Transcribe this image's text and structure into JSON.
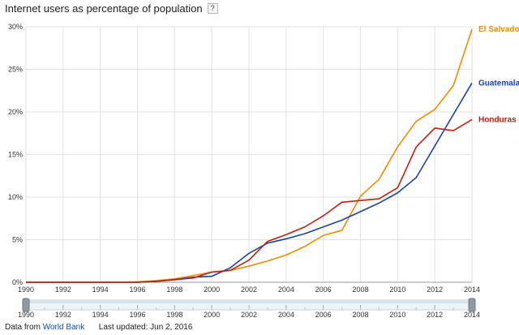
{
  "header": {
    "title": "Internet users as percentage of population",
    "help_label": "?"
  },
  "footer": {
    "data_from_label": "Data from",
    "source_link": "World Bank",
    "updated_label": "Last updated: Jun 2, 2016"
  },
  "chart_data": {
    "type": "line",
    "title": "Internet users as percentage of population",
    "xlabel": "",
    "ylabel": "",
    "x": [
      1990,
      1991,
      1992,
      1993,
      1994,
      1995,
      1996,
      1997,
      1998,
      1999,
      2000,
      2001,
      2002,
      2003,
      2004,
      2005,
      2006,
      2007,
      2008,
      2009,
      2010,
      2011,
      2012,
      2013,
      2014
    ],
    "xlim": [
      1990,
      2014
    ],
    "ylim": [
      0,
      30
    ],
    "x_ticks": [
      "1990",
      "1992",
      "1994",
      "1996",
      "1998",
      "2000",
      "2002",
      "2004",
      "2006",
      "2008",
      "2010",
      "2012",
      "2014"
    ],
    "y_ticks": [
      "0%",
      "5%",
      "10%",
      "15%",
      "20%",
      "25%",
      "30%"
    ],
    "grid": true,
    "legend": "end-of-line labels (right)",
    "series": [
      {
        "name": "El Salvador",
        "color": "#f08c00",
        "values": [
          0,
          0,
          0,
          0,
          0,
          0,
          0.05,
          0.2,
          0.4,
          0.8,
          1.2,
          1.4,
          1.9,
          2.5,
          3.2,
          4.2,
          5.5,
          6.1,
          10.1,
          12.1,
          15.9,
          18.9,
          20.3,
          23.1,
          29.7
        ]
      },
      {
        "name": "Guatemala",
        "color": "#1a43a8",
        "values": [
          0,
          0,
          0,
          0,
          0,
          0,
          0,
          0.1,
          0.3,
          0.6,
          0.7,
          1.7,
          3.4,
          4.6,
          5.1,
          5.7,
          6.5,
          7.3,
          8.3,
          9.3,
          10.5,
          12.3,
          16.0,
          19.7,
          23.4
        ]
      },
      {
        "name": "Honduras",
        "color": "#c0200d",
        "values": [
          0,
          0,
          0,
          0,
          0,
          0,
          0,
          0.1,
          0.3,
          0.5,
          1.2,
          1.4,
          2.6,
          4.8,
          5.6,
          6.5,
          7.8,
          9.4,
          9.6,
          9.8,
          11.1,
          15.9,
          18.1,
          17.8,
          19.1
        ]
      }
    ],
    "range_slider": {
      "start": "1990",
      "end": "2014",
      "ticks": [
        "1990",
        "1992",
        "1994",
        "1996",
        "1998",
        "2000",
        "2002",
        "2004",
        "2006",
        "2008",
        "2010",
        "2012",
        "2014"
      ]
    }
  }
}
